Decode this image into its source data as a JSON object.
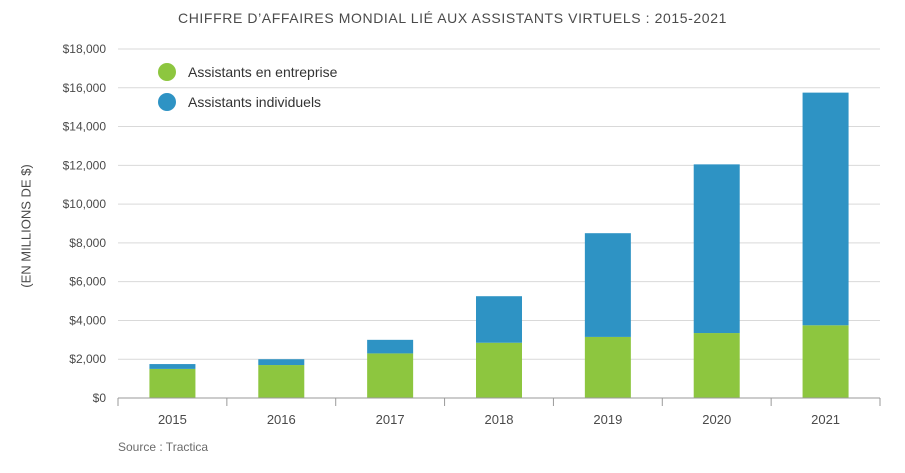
{
  "chart_data": {
    "type": "bar",
    "stacked": true,
    "title": "CHIFFRE D’AFFAIRES MONDIAL LIÉ AUX ASSISTANTS VIRTUELS : 2015-2021",
    "xlabel": "",
    "ylabel": "(EN MILLIONS DE $)",
    "ylim": [
      0,
      18000
    ],
    "yticks": [
      0,
      2000,
      4000,
      6000,
      8000,
      10000,
      12000,
      14000,
      16000,
      18000
    ],
    "ytick_labels": [
      "$0",
      "$2,000",
      "$4,000",
      "$6,000",
      "$8,000",
      "$10,000",
      "$12,000",
      "$14,000",
      "$16,000",
      "$18,000"
    ],
    "categories": [
      "2015",
      "2016",
      "2017",
      "2018",
      "2019",
      "2020",
      "2021"
    ],
    "series": [
      {
        "name": "Assistants en entreprise",
        "color": "#8dc63f",
        "values": [
          1500,
          1700,
          2300,
          2850,
          3150,
          3350,
          3750
        ]
      },
      {
        "name": "Assistants individuels",
        "color": "#2e93c4",
        "values": [
          250,
          300,
          700,
          2400,
          5350,
          8700,
          12000
        ]
      }
    ],
    "grid": true,
    "legend_position": "top-left",
    "source": "Source : Tractica"
  }
}
